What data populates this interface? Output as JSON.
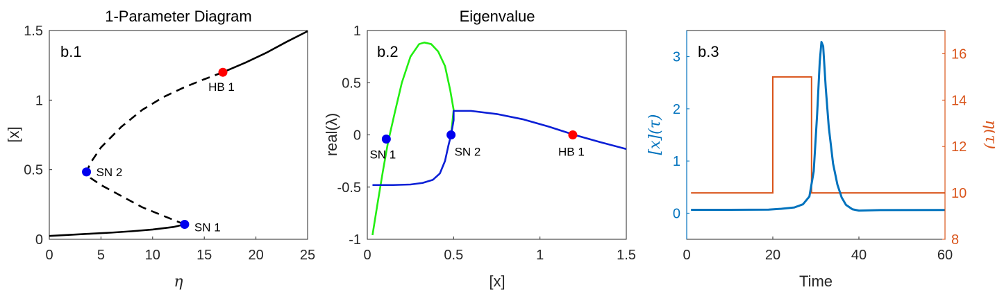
{
  "colors": {
    "black": "#000000",
    "blue_point": "#0000ee",
    "red_point": "#ff0000",
    "green_curve": "#22ee11",
    "blue_curve": "#0b1fd6",
    "x_series": "#0072bd",
    "eta_series": "#d95319"
  },
  "chart_data": [
    {
      "type": "line",
      "panel_tag": "b.1",
      "title": "1-Parameter Diagram",
      "xlabel": "η",
      "ylabel": "[x]",
      "xlim": [
        0,
        25
      ],
      "ylim": [
        0,
        1.5
      ],
      "xticks": [
        "0",
        "5",
        "10",
        "15",
        "20",
        "25"
      ],
      "yticks": [
        "0",
        "0.5",
        "1",
        "1.5"
      ],
      "series": [
        {
          "style": "solid",
          "points": [
            [
              0,
              0.024
            ],
            [
              2,
              0.032
            ],
            [
              4,
              0.04
            ],
            [
              6,
              0.048
            ],
            [
              8,
              0.058
            ],
            [
              10,
              0.07
            ],
            [
              12,
              0.088
            ],
            [
              13.1,
              0.107
            ]
          ]
        },
        {
          "style": "dashed",
          "points": [
            [
              13.1,
              0.107
            ],
            [
              11,
              0.17
            ],
            [
              9,
              0.23
            ],
            [
              7,
              0.31
            ],
            [
              5,
              0.39
            ],
            [
              4,
              0.44
            ],
            [
              3.6,
              0.484
            ],
            [
              4,
              0.55
            ],
            [
              5,
              0.66
            ],
            [
              7,
              0.81
            ],
            [
              9,
              0.93
            ],
            [
              11,
              1.02
            ],
            [
              13,
              1.09
            ],
            [
              15,
              1.15
            ],
            [
              16.8,
              1.2
            ]
          ]
        },
        {
          "style": "solid",
          "points": [
            [
              16.8,
              1.2
            ],
            [
              19,
              1.27
            ],
            [
              21,
              1.34
            ],
            [
              23,
              1.42
            ],
            [
              25,
              1.495
            ]
          ]
        }
      ],
      "special_points": [
        {
          "label": "SN 2",
          "x": 3.6,
          "y": 0.484,
          "color": "blue"
        },
        {
          "label": "SN 1",
          "x": 13.1,
          "y": 0.107,
          "color": "blue"
        },
        {
          "label": "HB 1",
          "x": 16.8,
          "y": 1.2,
          "color": "red"
        }
      ]
    },
    {
      "type": "line",
      "panel_tag": "b.2",
      "title": "Eigenvalue",
      "xlabel": "[x]",
      "ylabel": "real(λ)",
      "xlim": [
        0,
        1.5
      ],
      "ylim": [
        -1,
        1
      ],
      "xticks": [
        "0",
        "0.5",
        "1",
        "1.5"
      ],
      "yticks": [
        "-1",
        "-0.5",
        "0",
        "0.5",
        "1"
      ],
      "series": [
        {
          "color": "green",
          "points": [
            [
              0.03,
              -0.96
            ],
            [
              0.06,
              -0.65
            ],
            [
              0.09,
              -0.35
            ],
            [
              0.12,
              -0.07
            ],
            [
              0.16,
              0.22
            ],
            [
              0.2,
              0.5
            ],
            [
              0.25,
              0.75
            ],
            [
              0.3,
              0.87
            ],
            [
              0.33,
              0.885
            ],
            [
              0.37,
              0.87
            ],
            [
              0.41,
              0.8
            ],
            [
              0.45,
              0.66
            ],
            [
              0.48,
              0.43
            ],
            [
              0.5,
              0.24
            ],
            [
              0.485,
              0.0
            ]
          ]
        },
        {
          "color": "blue",
          "points": [
            [
              0.03,
              -0.48
            ],
            [
              0.15,
              -0.48
            ],
            [
              0.25,
              -0.475
            ],
            [
              0.32,
              -0.46
            ],
            [
              0.38,
              -0.43
            ],
            [
              0.42,
              -0.37
            ],
            [
              0.45,
              -0.25
            ],
            [
              0.47,
              -0.1
            ],
            [
              0.485,
              0.0
            ],
            [
              0.5,
              0.14
            ],
            [
              0.5,
              0.23
            ],
            [
              0.6,
              0.23
            ],
            [
              0.75,
              0.2
            ],
            [
              0.9,
              0.15
            ],
            [
              1.05,
              0.08
            ],
            [
              1.2,
              0.0
            ],
            [
              1.35,
              -0.07
            ],
            [
              1.5,
              -0.135
            ]
          ]
        }
      ],
      "special_points": [
        {
          "label": "SN 1",
          "x": 0.11,
          "y": -0.04,
          "color": "blue"
        },
        {
          "label": "SN 2",
          "x": 0.485,
          "y": 0.0,
          "color": "blue"
        },
        {
          "label": "HB 1",
          "x": 1.19,
          "y": 0.0,
          "color": "red"
        }
      ]
    },
    {
      "type": "line",
      "panel_tag": "b.3",
      "xlabel": "Time",
      "ylabel_left": "[x](τ)",
      "ylabel_right": "η(τ)",
      "xlim": [
        0,
        60
      ],
      "ylim_left": [
        -0.5,
        3.5
      ],
      "ylim_right": [
        8,
        17
      ],
      "xticks": [
        "0",
        "20",
        "40",
        "60"
      ],
      "yticks_left": [
        "0",
        "1",
        "2",
        "3"
      ],
      "yticks_right": [
        "8",
        "10",
        "12",
        "14",
        "16"
      ],
      "series": [
        {
          "name": "[x](τ)",
          "axis": "left",
          "points": [
            [
              1,
              0.065
            ],
            [
              10,
              0.065
            ],
            [
              19,
              0.068
            ],
            [
              22,
              0.085
            ],
            [
              25,
              0.11
            ],
            [
              27,
              0.17
            ],
            [
              28.5,
              0.32
            ],
            [
              29.5,
              0.8
            ],
            [
              30.3,
              1.9
            ],
            [
              30.9,
              2.9
            ],
            [
              31.3,
              3.28
            ],
            [
              31.7,
              3.2
            ],
            [
              32.3,
              2.4
            ],
            [
              33,
              1.65
            ],
            [
              34,
              0.95
            ],
            [
              35,
              0.55
            ],
            [
              36,
              0.3
            ],
            [
              37,
              0.16
            ],
            [
              38.5,
              0.075
            ],
            [
              40,
              0.05
            ],
            [
              45,
              0.06
            ],
            [
              60,
              0.062
            ]
          ]
        },
        {
          "name": "η(τ)",
          "axis": "right",
          "points": [
            [
              1,
              10
            ],
            [
              20,
              10
            ],
            [
              20,
              15
            ],
            [
              29,
              15
            ],
            [
              29,
              10
            ],
            [
              60,
              10
            ]
          ]
        }
      ]
    }
  ]
}
